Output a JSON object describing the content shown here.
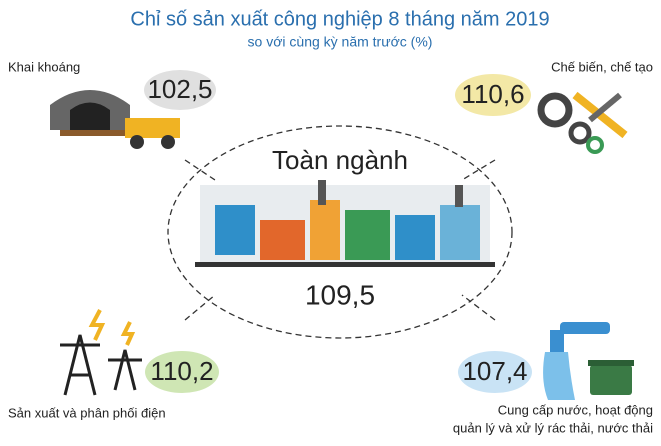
{
  "header": {
    "title": "Chỉ số sản xuất công nghiệp 8 tháng năm 2019",
    "subtitle": "so với cùng kỳ năm trước (%)"
  },
  "center": {
    "label": "Toàn ngành",
    "value": "109,5"
  },
  "sectors": [
    {
      "label": "Khai khoáng",
      "value": "102,5"
    },
    {
      "label": "Chế biến, chế tạo",
      "value": "110,6"
    },
    {
      "label": "Sản xuất và phân phối điện",
      "value": "110,2"
    },
    {
      "label_lines": [
        "Cung cấp nước, hoạt động",
        "quản lý và xử lý rác thải, nước thải"
      ],
      "value": "107,4"
    }
  ]
}
